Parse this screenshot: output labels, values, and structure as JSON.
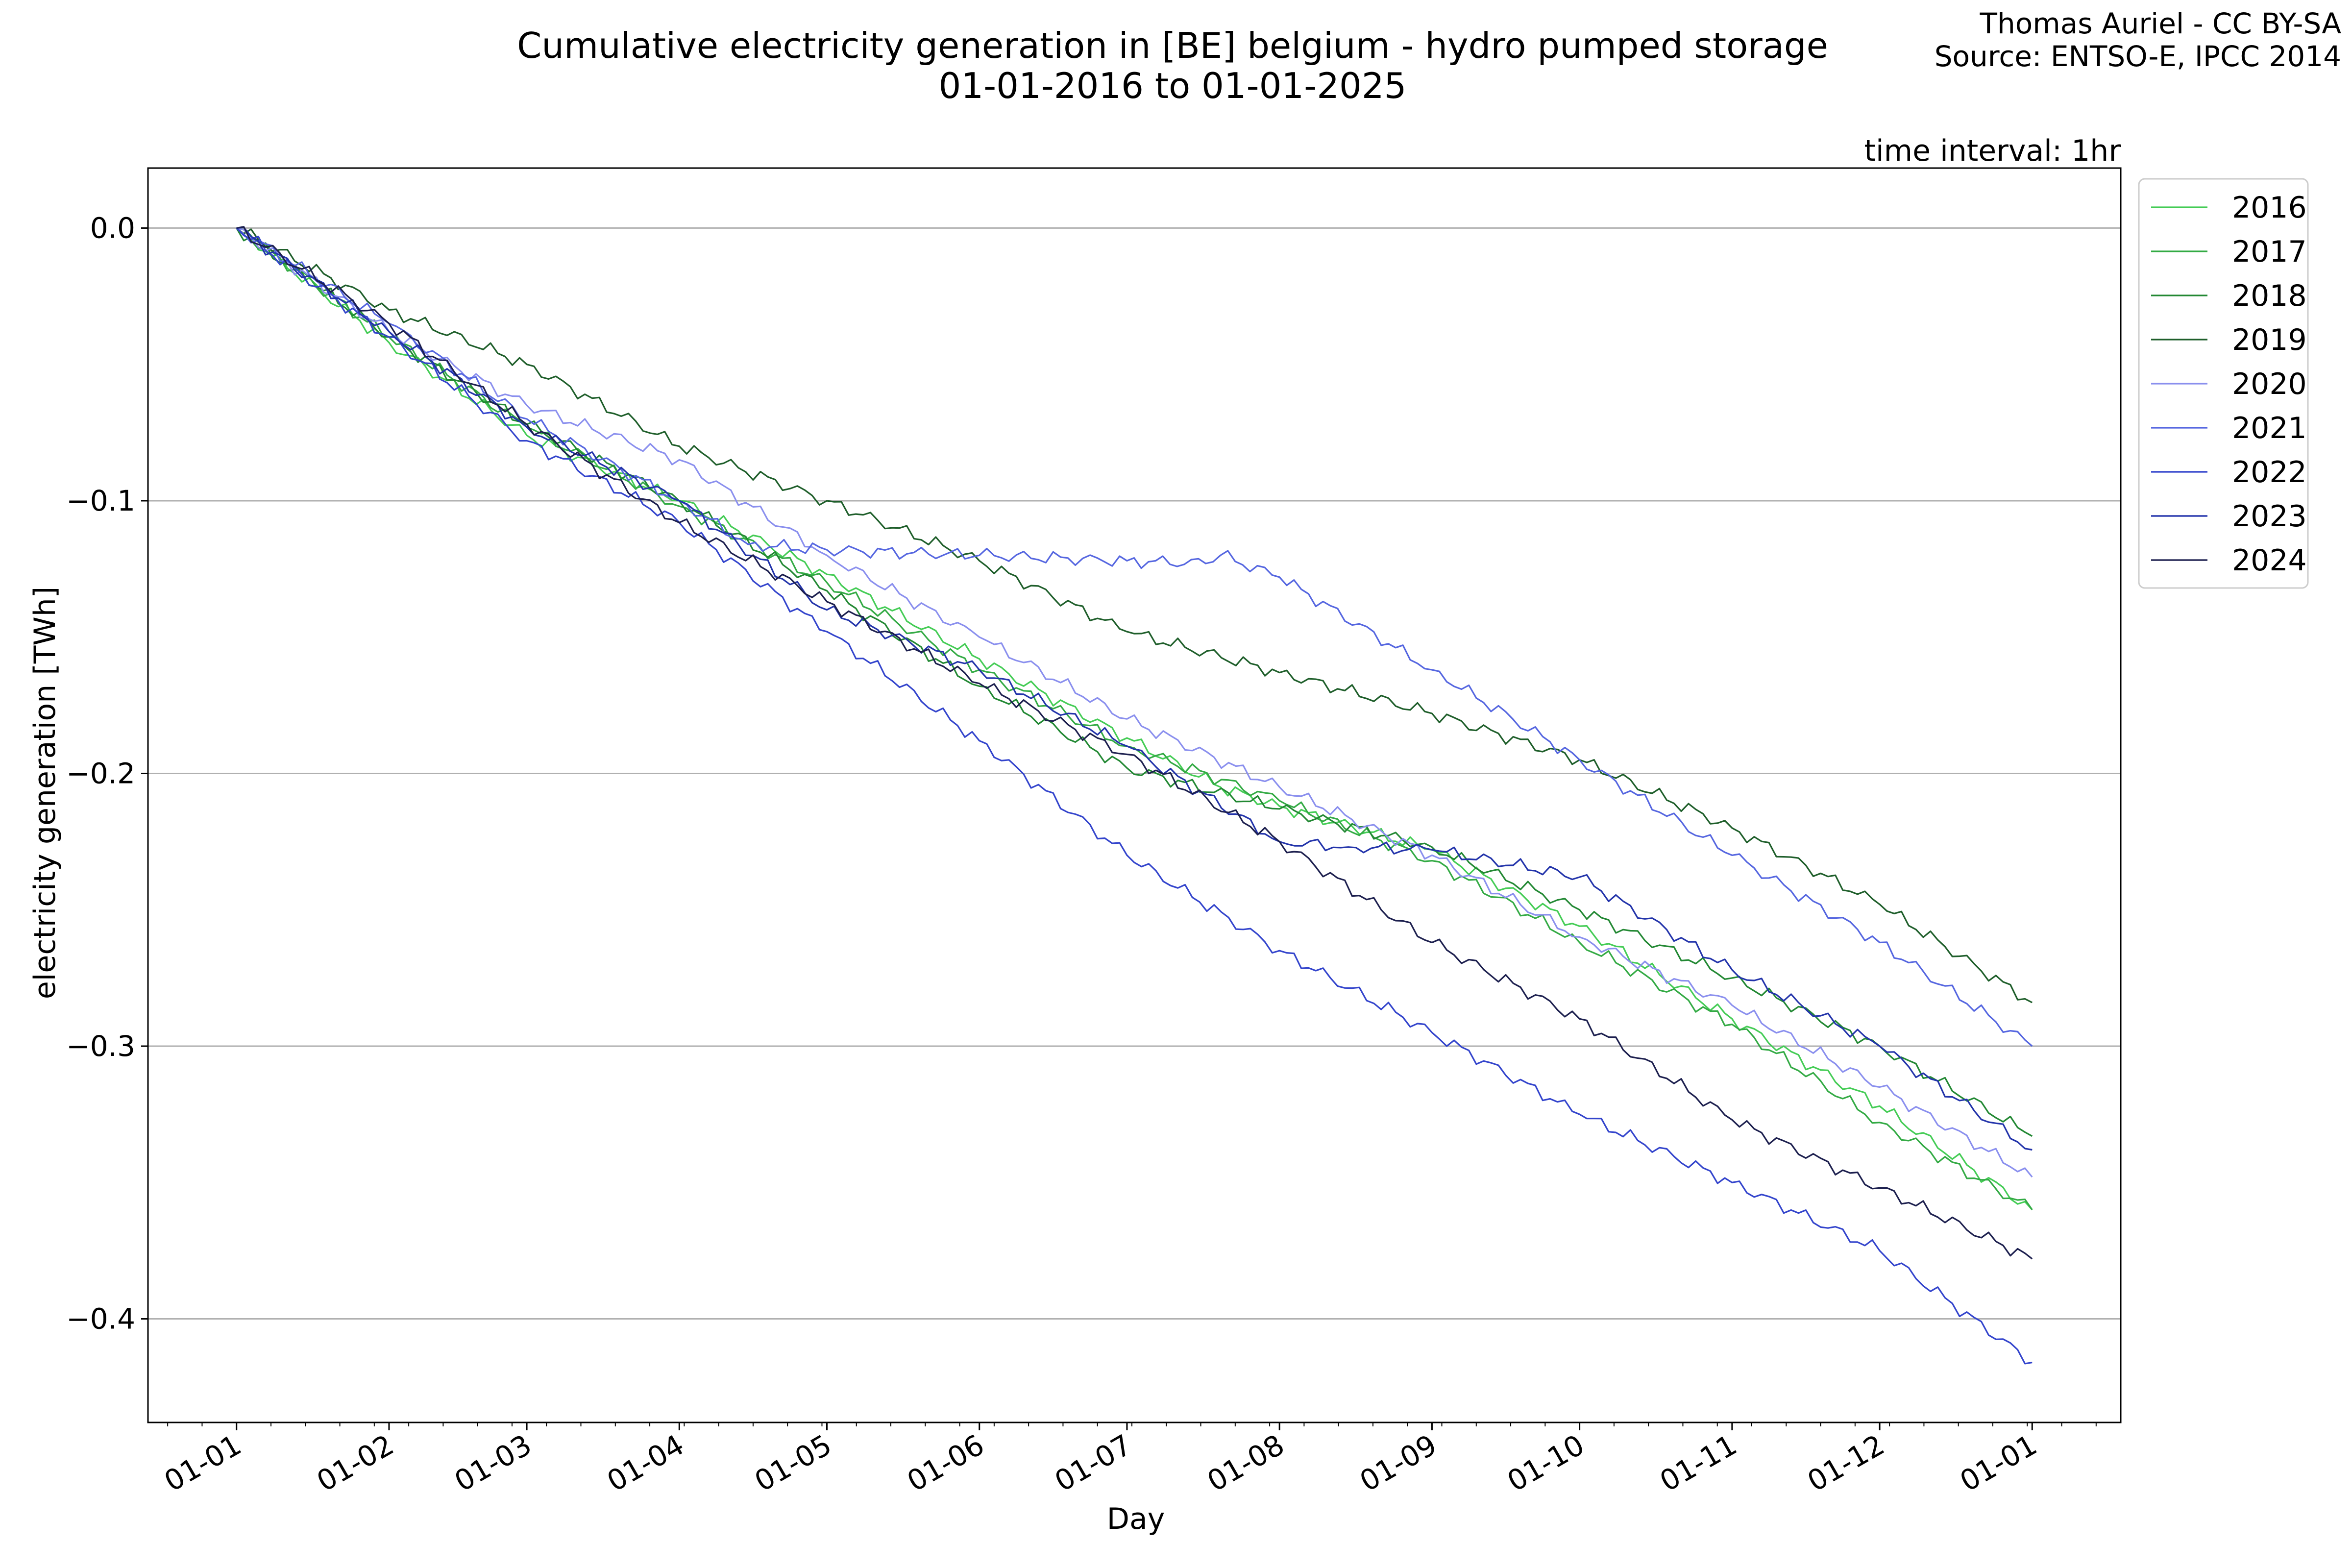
{
  "chart_data": {
    "type": "line",
    "title": "Cumulative electricity generation in [BE] belgium - hydro pumped storage",
    "subtitle": "01-01-2016 to 01-01-2025",
    "credit": [
      "Thomas Auriel - CC BY-SA",
      "Source: ENTSO-E, IPCC 2014"
    ],
    "annotation": "time interval: 1hr",
    "xlabel": "Day",
    "ylabel": "electricity generation [TWh]",
    "x_tick_labels": [
      "01-01",
      "01-02",
      "01-03",
      "01-04",
      "01-05",
      "01-06",
      "01-07",
      "01-08",
      "01-09",
      "01-10",
      "01-11",
      "01-12",
      "01-01"
    ],
    "x_tick_days": [
      0,
      31,
      59,
      90,
      120,
      151,
      181,
      212,
      243,
      273,
      304,
      334,
      365
    ],
    "xlim": [
      -18,
      383
    ],
    "ylim": [
      -0.438,
      0.022
    ],
    "y_ticks": [
      0.0,
      -0.1,
      -0.2,
      -0.3,
      -0.4
    ],
    "y_tick_labels": [
      "0.0",
      "−0.1",
      "−0.2",
      "−0.3",
      "−0.4"
    ],
    "grid": "horizontal",
    "legend_position": "outside-top-right",
    "series": [
      {
        "name": "2016",
        "color": "#44cc55",
        "points": [
          [
            0,
            0
          ],
          [
            31,
            -0.042
          ],
          [
            59,
            -0.076
          ],
          [
            90,
            -0.1
          ],
          [
            120,
            -0.127
          ],
          [
            151,
            -0.158
          ],
          [
            181,
            -0.187
          ],
          [
            200,
            -0.205
          ],
          [
            212,
            -0.212
          ],
          [
            243,
            -0.228
          ],
          [
            273,
            -0.256
          ],
          [
            304,
            -0.29
          ],
          [
            334,
            -0.322
          ],
          [
            365,
            -0.36
          ]
        ]
      },
      {
        "name": "2017",
        "color": "#33aa44",
        "points": [
          [
            0,
            0
          ],
          [
            31,
            -0.04
          ],
          [
            59,
            -0.073
          ],
          [
            90,
            -0.102
          ],
          [
            120,
            -0.13
          ],
          [
            151,
            -0.162
          ],
          [
            181,
            -0.19
          ],
          [
            212,
            -0.21
          ],
          [
            243,
            -0.232
          ],
          [
            273,
            -0.262
          ],
          [
            304,
            -0.292
          ],
          [
            334,
            -0.328
          ],
          [
            365,
            -0.36
          ]
        ]
      },
      {
        "name": "2018",
        "color": "#228833",
        "points": [
          [
            0,
            0
          ],
          [
            31,
            -0.04
          ],
          [
            59,
            -0.072
          ],
          [
            90,
            -0.1
          ],
          [
            120,
            -0.133
          ],
          [
            151,
            -0.168
          ],
          [
            181,
            -0.198
          ],
          [
            212,
            -0.213
          ],
          [
            243,
            -0.227
          ],
          [
            273,
            -0.25
          ],
          [
            304,
            -0.275
          ],
          [
            334,
            -0.3
          ],
          [
            365,
            -0.333
          ]
        ]
      },
      {
        "name": "2019",
        "color": "#1e5e2a",
        "points": [
          [
            0,
            0
          ],
          [
            31,
            -0.03
          ],
          [
            59,
            -0.05
          ],
          [
            90,
            -0.08
          ],
          [
            120,
            -0.1
          ],
          [
            151,
            -0.122
          ],
          [
            181,
            -0.148
          ],
          [
            212,
            -0.163
          ],
          [
            243,
            -0.178
          ],
          [
            273,
            -0.195
          ],
          [
            304,
            -0.22
          ],
          [
            334,
            -0.248
          ],
          [
            365,
            -0.284
          ]
        ]
      },
      {
        "name": "2020",
        "color": "#8a8fee",
        "points": [
          [
            0,
            0
          ],
          [
            31,
            -0.038
          ],
          [
            59,
            -0.065
          ],
          [
            90,
            -0.085
          ],
          [
            120,
            -0.12
          ],
          [
            151,
            -0.15
          ],
          [
            181,
            -0.18
          ],
          [
            212,
            -0.205
          ],
          [
            243,
            -0.23
          ],
          [
            273,
            -0.26
          ],
          [
            304,
            -0.285
          ],
          [
            334,
            -0.315
          ],
          [
            365,
            -0.348
          ]
        ]
      },
      {
        "name": "2021",
        "color": "#5566e0",
        "points": [
          [
            0,
            0
          ],
          [
            31,
            -0.035
          ],
          [
            59,
            -0.07
          ],
          [
            90,
            -0.1
          ],
          [
            104,
            -0.116
          ],
          [
            120,
            -0.118
          ],
          [
            151,
            -0.12
          ],
          [
            181,
            -0.122
          ],
          [
            197,
            -0.123
          ],
          [
            200,
            -0.12
          ],
          [
            212,
            -0.128
          ],
          [
            243,
            -0.162
          ],
          [
            273,
            -0.195
          ],
          [
            304,
            -0.23
          ],
          [
            334,
            -0.262
          ],
          [
            365,
            -0.3
          ]
        ]
      },
      {
        "name": "2022",
        "color": "#3344cc",
        "points": [
          [
            0,
            0
          ],
          [
            31,
            -0.04
          ],
          [
            59,
            -0.078
          ],
          [
            90,
            -0.108
          ],
          [
            120,
            -0.148
          ],
          [
            151,
            -0.188
          ],
          [
            181,
            -0.23
          ],
          [
            212,
            -0.265
          ],
          [
            243,
            -0.295
          ],
          [
            273,
            -0.325
          ],
          [
            304,
            -0.35
          ],
          [
            334,
            -0.375
          ],
          [
            365,
            -0.416
          ]
        ]
      },
      {
        "name": "2023",
        "color": "#2233aa",
        "points": [
          [
            0,
            0
          ],
          [
            31,
            -0.038
          ],
          [
            59,
            -0.073
          ],
          [
            90,
            -0.1
          ],
          [
            120,
            -0.14
          ],
          [
            151,
            -0.162
          ],
          [
            181,
            -0.19
          ],
          [
            212,
            -0.225
          ],
          [
            226,
            -0.227
          ],
          [
            243,
            -0.228
          ],
          [
            273,
            -0.238
          ],
          [
            304,
            -0.272
          ],
          [
            334,
            -0.3
          ],
          [
            365,
            -0.338
          ]
        ]
      },
      {
        "name": "2024",
        "color": "#1c1f4e",
        "points": [
          [
            0,
            0
          ],
          [
            31,
            -0.035
          ],
          [
            59,
            -0.072
          ],
          [
            90,
            -0.108
          ],
          [
            120,
            -0.137
          ],
          [
            151,
            -0.167
          ],
          [
            181,
            -0.193
          ],
          [
            212,
            -0.225
          ],
          [
            243,
            -0.262
          ],
          [
            273,
            -0.29
          ],
          [
            304,
            -0.327
          ],
          [
            334,
            -0.352
          ],
          [
            365,
            -0.378
          ]
        ]
      }
    ]
  }
}
